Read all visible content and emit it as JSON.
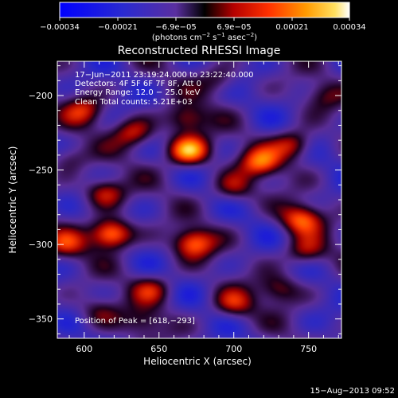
{
  "colorbar": {
    "tick_labels": [
      "−0.00034",
      "−0.00021",
      "−6.9e−05",
      "6.9e−05",
      "0.00021",
      "0.00034"
    ],
    "unit_parts": [
      "(photons cm",
      "−2",
      " s",
      "−1",
      " asec",
      "−2",
      ")"
    ],
    "min": -0.00034,
    "max": 0.00034
  },
  "chart_data": {
    "type": "heatmap",
    "title": "Reconstructed RHESSI Image",
    "xlabel": "Heliocentric X (arcsec)",
    "ylabel": "Heliocentric Y (arcsec)",
    "xlim": [
      582,
      772
    ],
    "ylim": [
      -363,
      -177
    ],
    "xticks": [
      600,
      650,
      700,
      750
    ],
    "yticks": [
      -200,
      -250,
      -300,
      -350
    ],
    "annotations": [
      "17−Jun−2011 23:19:24.000 to 23:22:40.000",
      "Detectors: 4F 5F 6F 7F 8F, Att 0",
      "Energy Range: 12.0 − 25.0 keV",
      "Clean     Total counts: 5.21E+03"
    ],
    "peak_label": "Position of Peak = [618,−293]",
    "colormap": "hot-blue diverging",
    "sources": [
      {
        "x": 618,
        "y": -293,
        "intensity": 1.0
      },
      {
        "x": 670,
        "y": -237,
        "intensity": 0.95
      },
      {
        "x": 673,
        "y": -299,
        "intensity": 0.75
      },
      {
        "x": 614,
        "y": -265,
        "intensity": 0.6
      },
      {
        "x": 668,
        "y": -216,
        "intensity": 0.55
      },
      {
        "x": 633,
        "y": -225,
        "intensity": 0.55
      },
      {
        "x": 745,
        "y": -283,
        "intensity": 0.7
      },
      {
        "x": 748,
        "y": -305,
        "intensity": 0.5
      },
      {
        "x": 718,
        "y": -245,
        "intensity": 0.7
      },
      {
        "x": 740,
        "y": -233,
        "intensity": 0.6
      },
      {
        "x": 700,
        "y": -262,
        "intensity": 0.45
      },
      {
        "x": 600,
        "y": -210,
        "intensity": 0.5
      },
      {
        "x": 588,
        "y": -300,
        "intensity": 0.45
      },
      {
        "x": 590,
        "y": -242,
        "intensity": 0.35
      },
      {
        "x": 730,
        "y": -330,
        "intensity": 0.45
      },
      {
        "x": 645,
        "y": -330,
        "intensity": 0.45
      },
      {
        "x": 700,
        "y": -340,
        "intensity": 0.5
      },
      {
        "x": 610,
        "y": -345,
        "intensity": 0.35
      },
      {
        "x": 690,
        "y": -190,
        "intensity": 0.35
      },
      {
        "x": 760,
        "y": -200,
        "intensity": 0.3
      },
      {
        "x": 640,
        "y": -352,
        "intensity": 0.35
      }
    ]
  },
  "footer": {
    "timestamp": "15−Aug−2013 09:52"
  }
}
